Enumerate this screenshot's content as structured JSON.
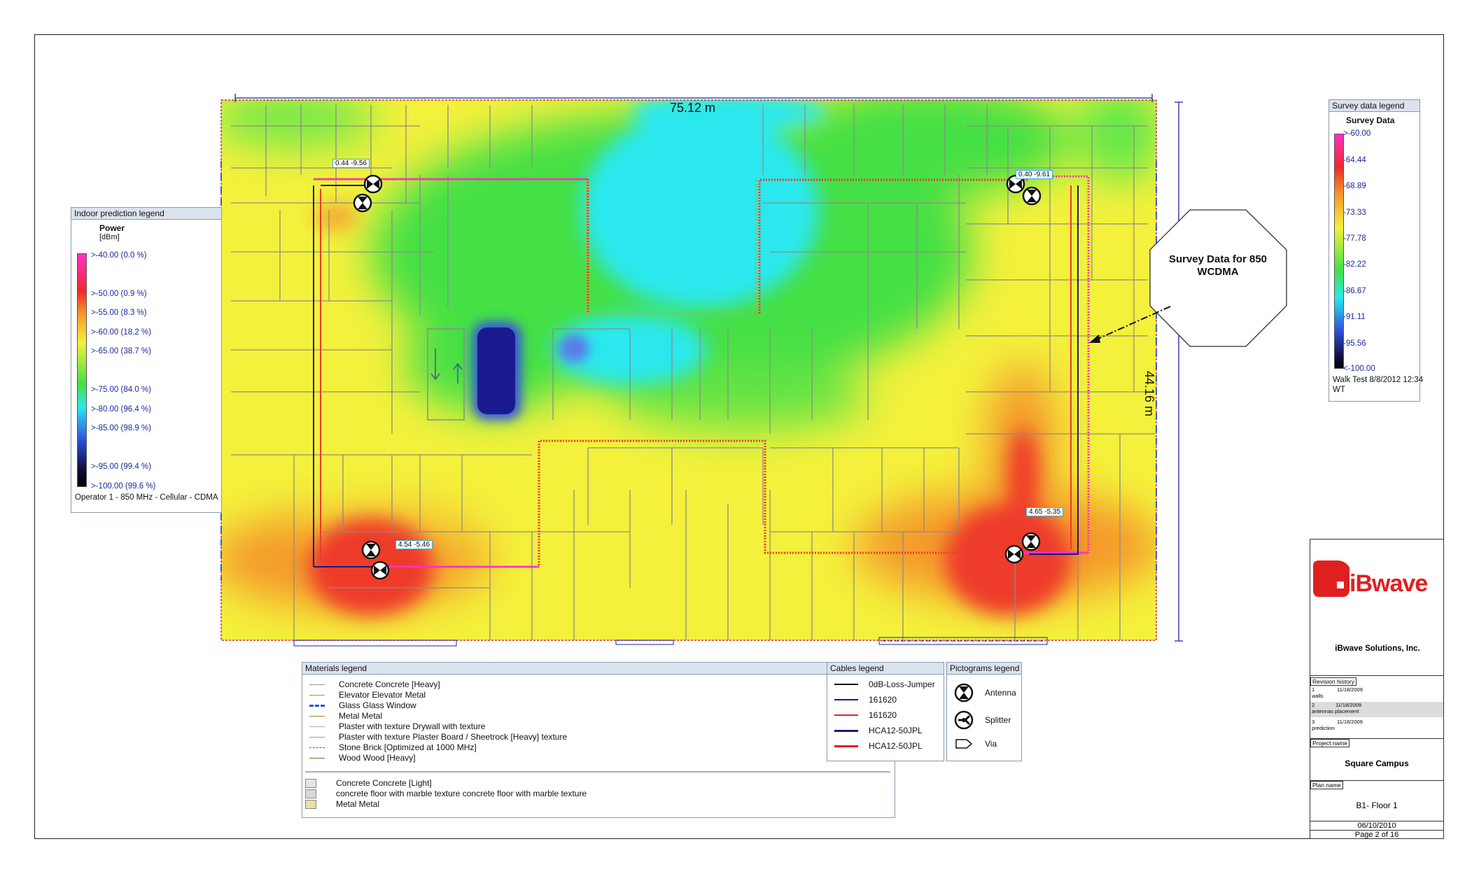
{
  "plan": {
    "width_dim": "75.12 m",
    "height_dim": "44.16 m",
    "callout": [
      "Survey Data for 850",
      "WCDMA"
    ],
    "antenna_tags": [
      "0.44 -9.56",
      "0.40 -9.61",
      "4.54 -5.46",
      "4.65 -5.35"
    ]
  },
  "indoor_legend": {
    "title": "Indoor prediction legend",
    "heading": "Power",
    "unit": "[dBm]",
    "rows": [
      ">-40.00 (0.0 %)",
      ">-50.00 (0.9 %)",
      ">-55.00 (8.3 %)",
      ">-60.00 (18.2 %)",
      ">-65.00 (38.7 %)",
      ">-75.00 (84.0 %)",
      ">-80.00 (96.4 %)",
      ">-85.00 (98.9 %)",
      ">-95.00 (99.4 %)",
      ">-100.00 (99.6 %)"
    ],
    "footer": "Operator 1 - 850 MHz - Cellular - CDMA"
  },
  "survey_legend": {
    "title": "Survey data legend",
    "heading": "Survey Data",
    "rows": [
      ">-60.00",
      "-64.44",
      "-68.89",
      "-73.33",
      "-77.78",
      "-82.22",
      "-86.67",
      "-91.11",
      "-95.56",
      "<-100.00"
    ],
    "footer1": "Walk Test 8/8/2012 12:34",
    "footer2": "WT"
  },
  "materials_legend": {
    "title": "Materials legend",
    "lines": [
      {
        "label": "Concrete Concrete [Heavy]",
        "color": "#9a9a9a"
      },
      {
        "label": "Elevator Elevator Metal",
        "color": "#b09a20"
      },
      {
        "label": "Glass Glass Window",
        "color": "#2255dd"
      },
      {
        "label": "Metal Metal",
        "color": "#909030"
      },
      {
        "label": "Plaster with texture Drywall with texture",
        "color": "#b0b0b0"
      },
      {
        "label": "Plaster with texture Plaster Board / Sheetrock [Heavy] texture",
        "color": "#a0a0a0"
      },
      {
        "label": "Stone Brick [Optimized at 1000 MHz]",
        "color": "#cc3333"
      },
      {
        "label": "Wood Wood [Heavy]",
        "color": "#7a6a30"
      }
    ],
    "fills": [
      {
        "label": "Concrete Concrete [Light]",
        "color": "#e4e4e4"
      },
      {
        "label": "concrete floor with marble texture concrete floor with marble texture",
        "color": "#d8d8d8"
      },
      {
        "label": "Metal Metal",
        "color": "#e8e0a8"
      }
    ]
  },
  "cables_legend": {
    "title": "Cables legend",
    "items": [
      {
        "label": "0dB-Loss-Jumper",
        "color": "#111111"
      },
      {
        "label": "161620",
        "color": "#1a1a7a"
      },
      {
        "label": "161620",
        "color": "#dd2222"
      },
      {
        "label": "HCA12-50JPL",
        "color": "#1a1a7a"
      },
      {
        "label": "HCA12-50JPL",
        "color": "#dd2222"
      }
    ]
  },
  "pictograms_legend": {
    "title": "Pictograms legend",
    "items": [
      {
        "label": "Antenna",
        "icon": "antenna-icon"
      },
      {
        "label": "Splitter",
        "icon": "splitter-icon"
      },
      {
        "label": "Via",
        "icon": "via-icon"
      }
    ]
  },
  "title_block": {
    "company": "iBwave Solutions, Inc.",
    "revision_label": "Revision history",
    "revisions": [
      {
        "num": "1",
        "date": "11/18/2009",
        "desc": "walls"
      },
      {
        "num": "2",
        "date": "11/18/2009",
        "desc": "antennas  placement"
      },
      {
        "num": "3",
        "date": "11/18/2009",
        "desc": "prediction"
      }
    ],
    "project_label": "Project name",
    "project_name": "Square Campus",
    "plan_label": "Plan name",
    "plan_name": "B1- Floor 1",
    "date": "06/10/2010",
    "page": "Page 2 of 16",
    "logo_text": "iBwave"
  },
  "colors": {
    "yellow": "#f4f13c",
    "green": "#44e044",
    "cyan": "#29e8ee",
    "red": "#ee3a2a",
    "magenta": "#ff2fc8",
    "brand": "#e02020"
  }
}
